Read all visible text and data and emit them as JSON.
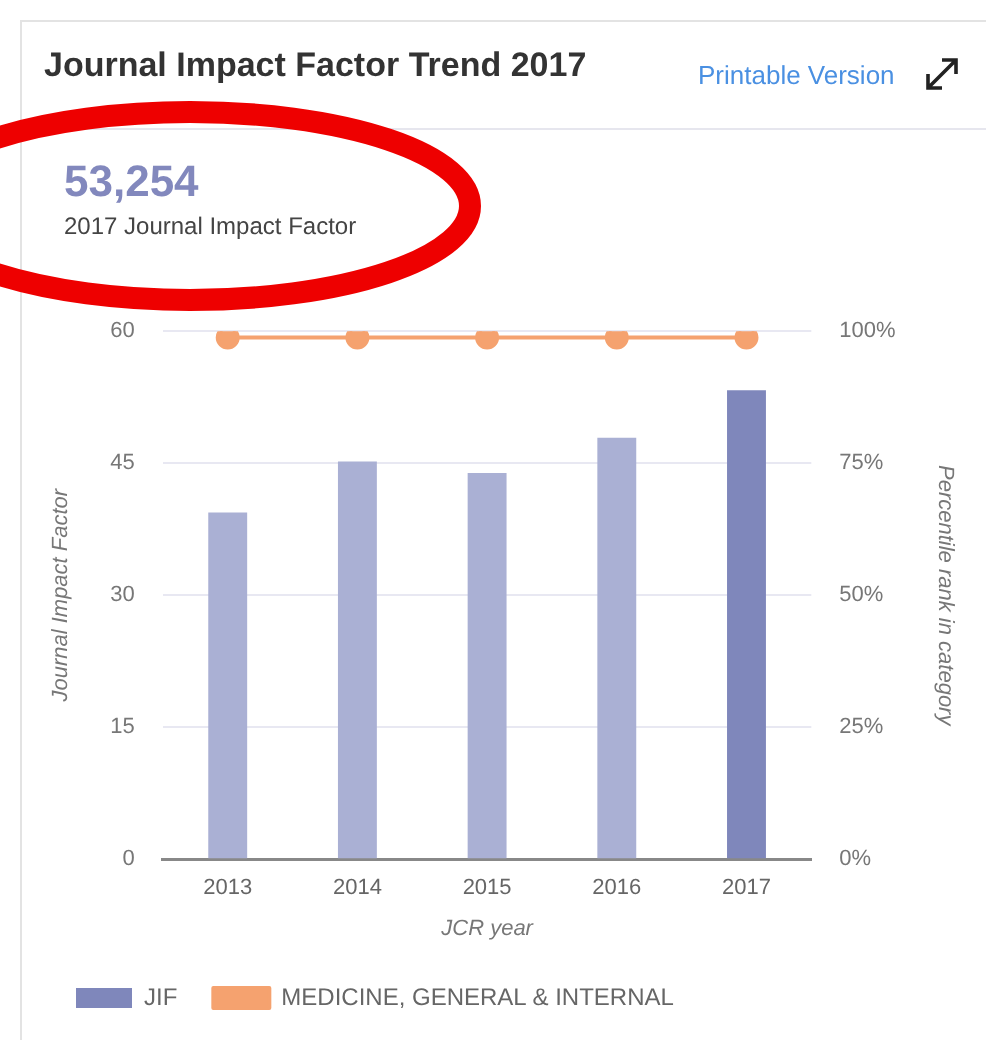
{
  "chart_data": {
    "type": "bar",
    "title": "Journal Impact Factor Trend 2017",
    "annotations": [
      "Printable Version",
      "53,254",
      "2017 Journal Impact Factor"
    ],
    "categories": [
      "2013",
      "2014",
      "2015",
      "2016",
      "2017"
    ],
    "xlabel": "JCR year",
    "ylabel": "Journal Impact Factor",
    "y2label": "Percentile rank in category",
    "series": [
      {
        "name": "JIF",
        "color": "#7f87bb",
        "colors": [
          "#aab0d4",
          "#aab0d4",
          "#aab0d4",
          "#aab0d4",
          "#7f87bb"
        ],
        "values": [
          39.4,
          45.2,
          43.9,
          47.9,
          53.3
        ]
      },
      {
        "name": "MEDICINE, GENERAL & INTERNAL",
        "type": "line",
        "axis": "y2",
        "color": "#f5a26f",
        "values": [
          98.8,
          98.8,
          98.8,
          98.8,
          98.8
        ]
      }
    ],
    "ylim": [
      0,
      60
    ],
    "yticks": [
      0,
      15,
      30,
      45,
      60
    ],
    "y2lim": [
      0,
      100
    ],
    "y2ticks": [
      {
        "value": 0,
        "label": "0%"
      },
      {
        "value": 25,
        "label": "25%"
      },
      {
        "value": 50,
        "label": "50%"
      },
      {
        "value": 75,
        "label": "75%"
      },
      {
        "value": 100,
        "label": "100%"
      }
    ],
    "grid": "y",
    "legend": "bottom left",
    "marker": "circle",
    "line_style": "solid"
  }
}
